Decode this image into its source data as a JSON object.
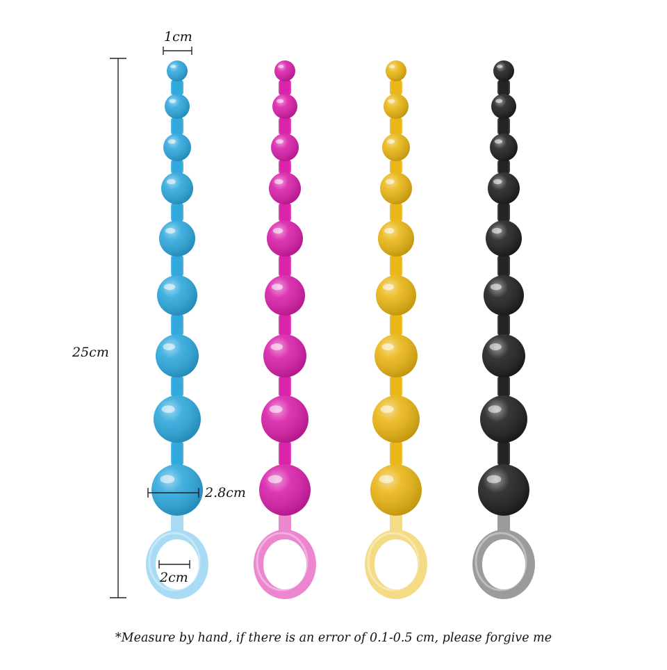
{
  "measurements": {
    "top_bead_width": "1cm",
    "total_length": "25cm",
    "bottom_bead_width": "2.8cm",
    "ring_inner_width": "2cm"
  },
  "footnote": "*Measure by hand, if there is an error of 0.1-0.5 cm, please forgive me",
  "strands": [
    {
      "name": "blue",
      "bead_color": "#2aa6dc",
      "ring_color": "#a9dcf4"
    },
    {
      "name": "pink",
      "bead_color": "#d81ba8",
      "ring_color": "#eb86cf"
    },
    {
      "name": "yellow",
      "bead_color": "#e9b40f",
      "ring_color": "#f3dc85"
    },
    {
      "name": "black",
      "bead_color": "#1c1c1c",
      "ring_color": "#9b9b9b"
    }
  ]
}
